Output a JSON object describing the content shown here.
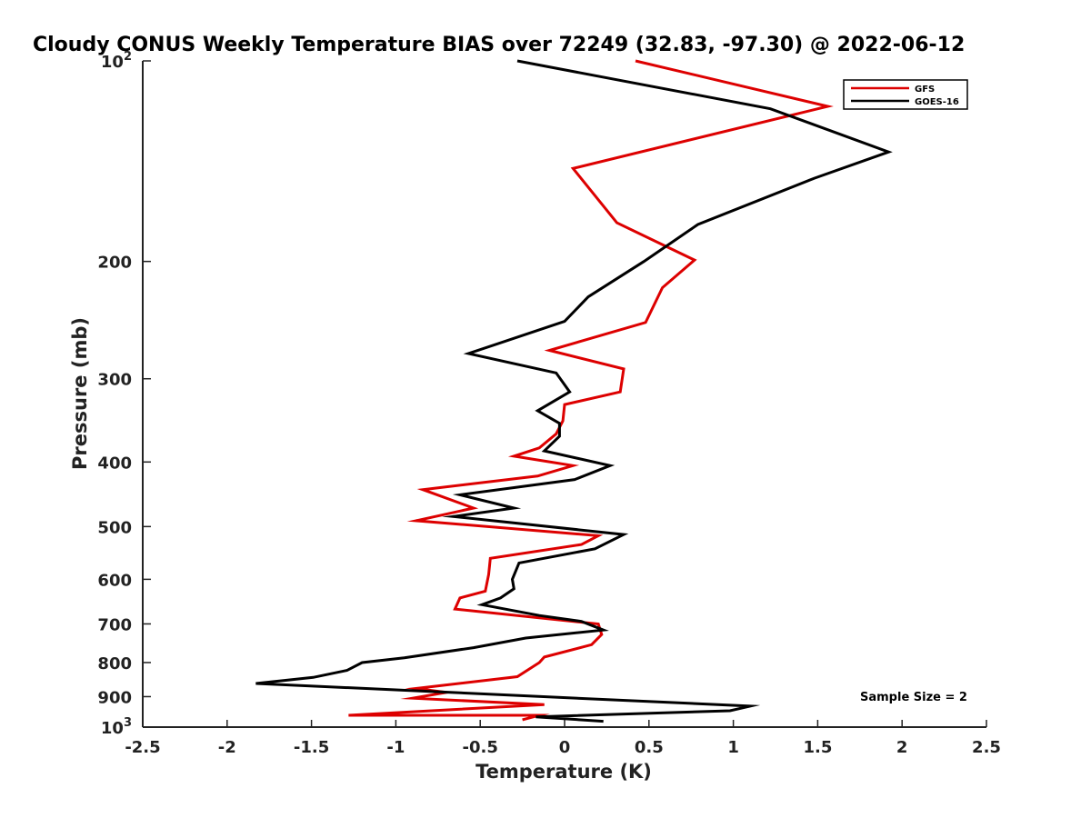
{
  "chart_data": {
    "type": "line",
    "title": "Cloudy CONUS Weekly Temperature BIAS over 72249 (32.83, -97.30) @ 2022-06-12",
    "xlabel": "Temperature (K)",
    "ylabel": "Pressure (mb)",
    "xlim": [
      -2.5,
      2.5
    ],
    "ylim": [
      100,
      1000
    ],
    "yscale": "log",
    "yreversed": true,
    "grid": false,
    "legend_position": "top-right",
    "x_ticks": [
      {
        "value": -2.5,
        "label": "-2.5"
      },
      {
        "value": -2,
        "label": "-2"
      },
      {
        "value": -1.5,
        "label": "-1.5"
      },
      {
        "value": -1,
        "label": "-1"
      },
      {
        "value": -0.5,
        "label": "-0.5"
      },
      {
        "value": 0,
        "label": "0"
      },
      {
        "value": 0.5,
        "label": "0.5"
      },
      {
        "value": 1,
        "label": "1"
      },
      {
        "value": 1.5,
        "label": "1.5"
      },
      {
        "value": 2,
        "label": "2"
      },
      {
        "value": 2.5,
        "label": "2.5"
      }
    ],
    "y_ticks": [
      {
        "value": 100,
        "base": "10",
        "exp": "2"
      },
      {
        "value": 200,
        "label": "200"
      },
      {
        "value": 300,
        "label": "300"
      },
      {
        "value": 400,
        "label": "400"
      },
      {
        "value": 500,
        "label": "500"
      },
      {
        "value": 600,
        "label": "600"
      },
      {
        "value": 700,
        "label": "700"
      },
      {
        "value": 800,
        "label": "800"
      },
      {
        "value": 900,
        "label": "900"
      },
      {
        "value": 1000,
        "base": "10",
        "exp": "3"
      }
    ],
    "series": [
      {
        "name": "GFS",
        "color": "#dd0000",
        "points": [
          [
            0.42,
            100
          ],
          [
            1.56,
            117
          ],
          [
            0.05,
            145
          ],
          [
            0.31,
            175
          ],
          [
            0.77,
            199
          ],
          [
            0.58,
            219
          ],
          [
            0.48,
            247
          ],
          [
            -0.09,
            272
          ],
          [
            0.35,
            290
          ],
          [
            0.33,
            314
          ],
          [
            0.0,
            328
          ],
          [
            -0.01,
            347
          ],
          [
            -0.05,
            363
          ],
          [
            -0.15,
            381
          ],
          [
            -0.3,
            392
          ],
          [
            0.05,
            405
          ],
          [
            -0.16,
            420
          ],
          [
            -0.84,
            440
          ],
          [
            -0.54,
            469
          ],
          [
            -0.88,
            490
          ],
          [
            0.2,
            516
          ],
          [
            0.1,
            532
          ],
          [
            -0.44,
            558
          ],
          [
            -0.45,
            590
          ],
          [
            -0.47,
            625
          ],
          [
            -0.62,
            640
          ],
          [
            -0.65,
            665
          ],
          [
            0.2,
            700
          ],
          [
            0.22,
            726
          ],
          [
            0.16,
            752
          ],
          [
            -0.12,
            785
          ],
          [
            -0.15,
            800
          ],
          [
            -0.28,
            840
          ],
          [
            -0.88,
            875
          ],
          [
            -0.7,
            887
          ],
          [
            -0.9,
            905
          ],
          [
            -0.12,
            925
          ],
          [
            -1.28,
            960
          ],
          [
            -0.15,
            960
          ],
          [
            -0.25,
            975
          ]
        ]
      },
      {
        "name": "GOES-16",
        "color": "#000000",
        "points": [
          [
            -0.28,
            100
          ],
          [
            1.22,
            118
          ],
          [
            1.92,
            137
          ],
          [
            1.48,
            150
          ],
          [
            0.79,
            176
          ],
          [
            0.47,
            200
          ],
          [
            0.14,
            226
          ],
          [
            0.0,
            246
          ],
          [
            -0.57,
            275
          ],
          [
            -0.05,
            294
          ],
          [
            0.03,
            314
          ],
          [
            -0.16,
            335
          ],
          [
            -0.03,
            350
          ],
          [
            -0.03,
            366
          ],
          [
            -0.12,
            385
          ],
          [
            0.27,
            405
          ],
          [
            0.06,
            425
          ],
          [
            -0.62,
            448
          ],
          [
            -0.3,
            469
          ],
          [
            -0.66,
            483
          ],
          [
            0.35,
            514
          ],
          [
            0.18,
            540
          ],
          [
            -0.27,
            567
          ],
          [
            -0.31,
            600
          ],
          [
            -0.3,
            620
          ],
          [
            -0.38,
            640
          ],
          [
            -0.49,
            655
          ],
          [
            -0.15,
            680
          ],
          [
            0.1,
            694
          ],
          [
            0.23,
            715
          ],
          [
            -0.23,
            735
          ],
          [
            -0.54,
            760
          ],
          [
            -0.95,
            787
          ],
          [
            -1.2,
            800
          ],
          [
            -1.29,
            822
          ],
          [
            -1.49,
            842
          ],
          [
            -1.83,
            860
          ],
          [
            1.1,
            930
          ],
          [
            0.98,
            945
          ],
          [
            -0.17,
            965
          ],
          [
            0.23,
            980
          ]
        ]
      }
    ],
    "annotation": "Sample Size = 2"
  }
}
